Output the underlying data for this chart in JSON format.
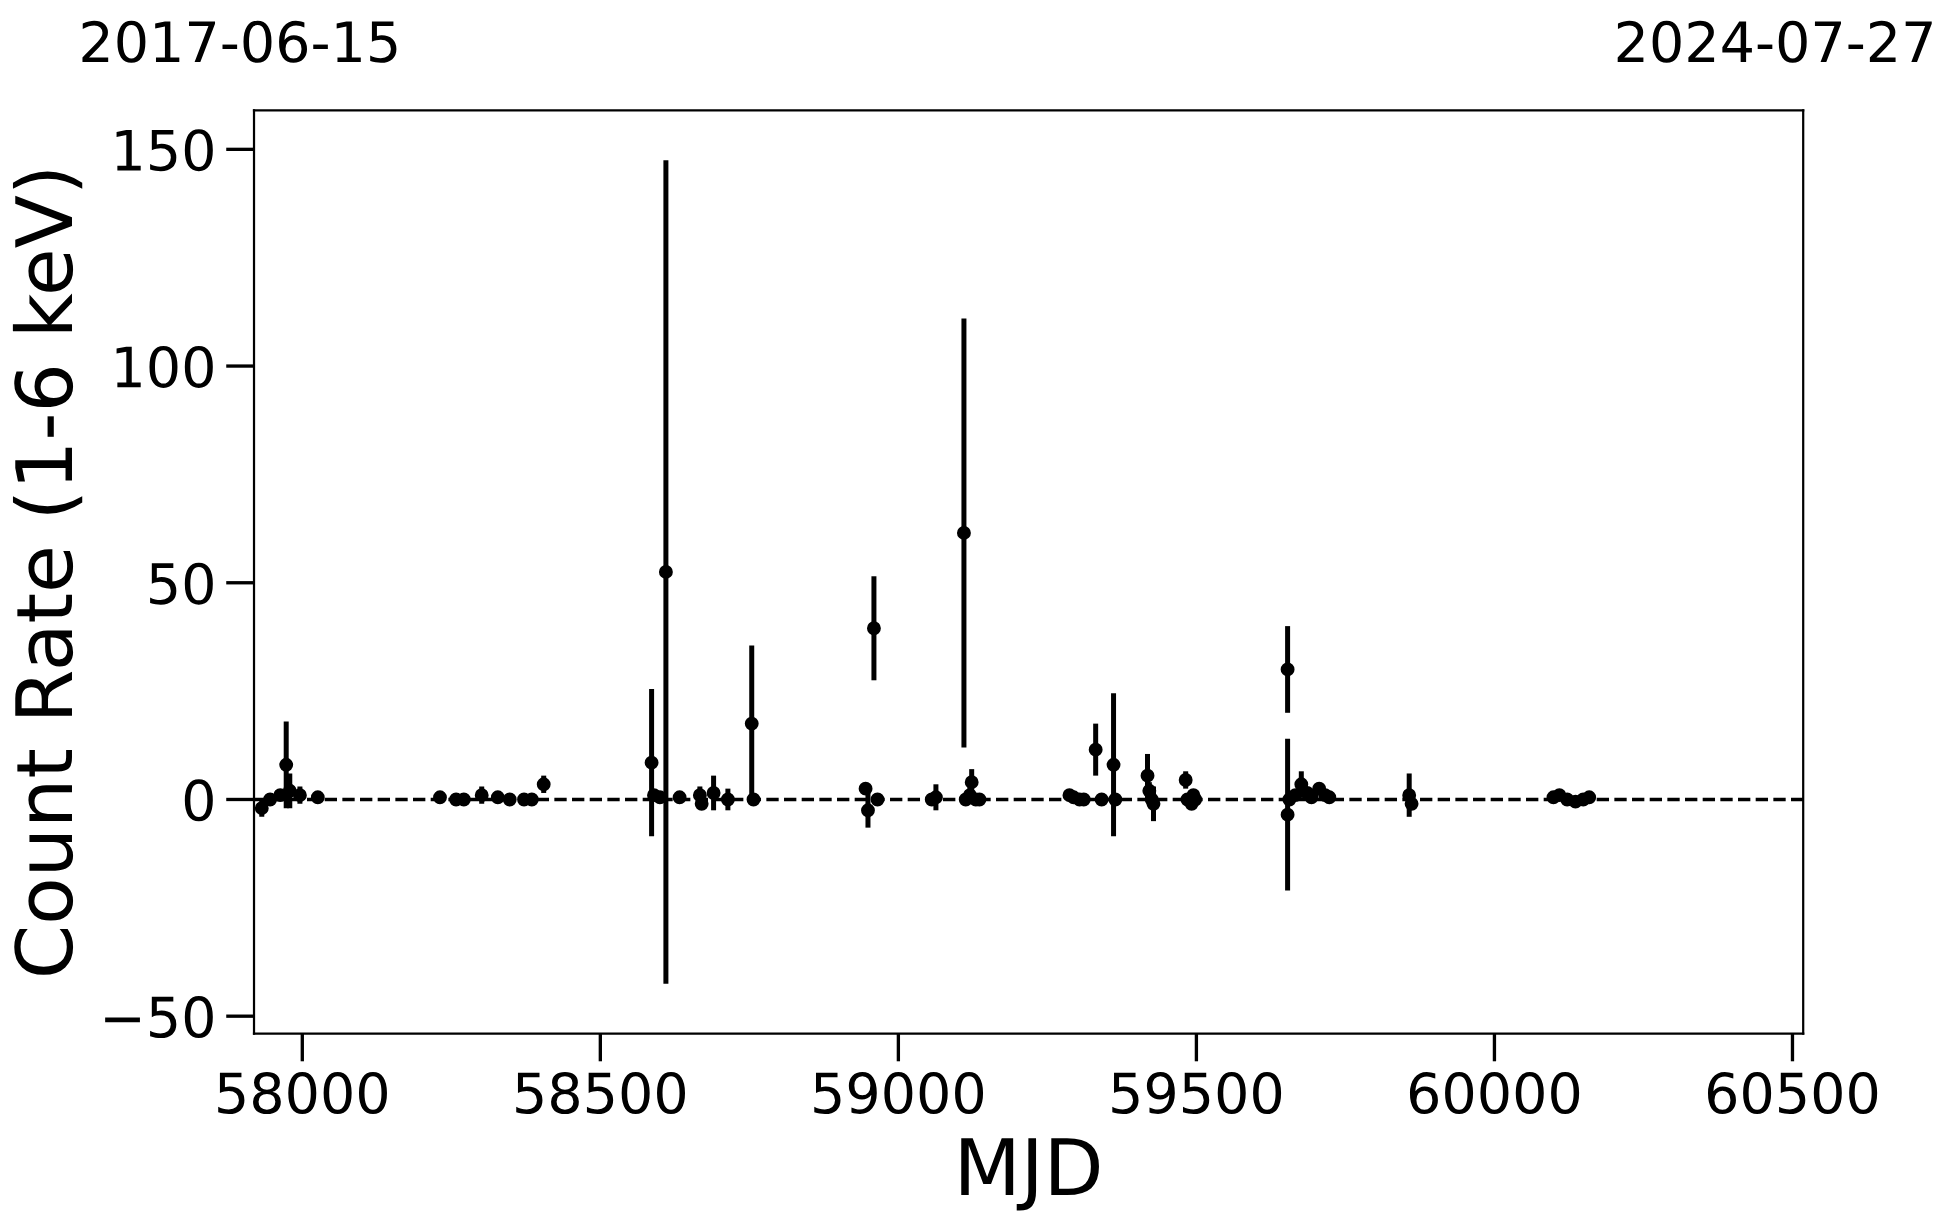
{
  "chart_data": {
    "type": "scatter",
    "xlabel": "MJD",
    "ylabel": "Count Rate (1-6 keV)",
    "x": [
      57932,
      57946,
      57963,
      57973,
      57979,
      57996,
      58026,
      58231,
      58258,
      58271,
      58301,
      58328,
      58348,
      58372,
      58385,
      58405,
      58586,
      58590,
      58600,
      58610,
      58633,
      58667,
      58670,
      58690,
      58714,
      58754,
      58757,
      58945,
      58949,
      58959,
      58965,
      59056,
      59063,
      59110,
      59113,
      59120,
      59123,
      59130,
      59136,
      59287,
      59294,
      59304,
      59311,
      59331,
      59341,
      59361,
      59364,
      59418,
      59421,
      59425,
      59428,
      59482,
      59485,
      59492,
      59495,
      59498,
      59653,
      59653,
      59656,
      59666,
      59676,
      59686,
      59693,
      59706,
      59716,
      59723,
      59857,
      59861,
      60099,
      60109,
      60122,
      60136,
      60149,
      60159
    ],
    "values": [
      -2,
      0,
      1,
      8,
      2,
      1,
      0.5,
      0.5,
      0,
      0,
      1,
      0.5,
      0,
      0,
      0,
      3.5,
      8.5,
      1,
      0.5,
      52.5,
      0.5,
      1,
      -1,
      1.5,
      0,
      17.5,
      0,
      2.5,
      -2.5,
      39.5,
      0,
      0,
      0.5,
      61.5,
      0,
      1,
      4,
      0,
      0,
      1,
      0.5,
      0,
      0,
      11.5,
      0,
      8,
      0,
      5.5,
      2,
      0,
      -1,
      4.5,
      0,
      -1,
      1,
      0,
      30,
      -3.5,
      0,
      1,
      3.5,
      1.5,
      0.5,
      2.5,
      1,
      0.5,
      1,
      -1,
      0.5,
      1,
      0,
      -0.5,
      0,
      0.5
    ],
    "errors": [
      2,
      1,
      1,
      10,
      4,
      2,
      1,
      0.5,
      1,
      1,
      2,
      1,
      1,
      1,
      1,
      2,
      17,
      1,
      1,
      95,
      1,
      2,
      1,
      4,
      2.5,
      18,
      1,
      1,
      4,
      12,
      1,
      1,
      3,
      49.5,
      1,
      2,
      3,
      1,
      1,
      1,
      1,
      1,
      1,
      6,
      1.5,
      16.5,
      1,
      5,
      2,
      1,
      4,
      2,
      1,
      1,
      1,
      1,
      10,
      17.5,
      1,
      1,
      3,
      1,
      1,
      1,
      1,
      1,
      5,
      1,
      1,
      1,
      1,
      1,
      1,
      1
    ],
    "color": "#000000",
    "marker": "circle",
    "xlim": [
      57919,
      60518
    ],
    "xticks": [
      58000,
      58500,
      59000,
      59500,
      60000,
      60500
    ],
    "ylim": [
      -54,
      159
    ],
    "yticks": [
      -50,
      0,
      50,
      100,
      150
    ],
    "annotations": [
      "2017-06-15",
      "2024-07-27"
    ],
    "ref_lines": [
      {
        "axis": "y",
        "value": 0,
        "line_style": "dashed",
        "color": "#000000"
      }
    ],
    "grid": false,
    "legend": false
  }
}
